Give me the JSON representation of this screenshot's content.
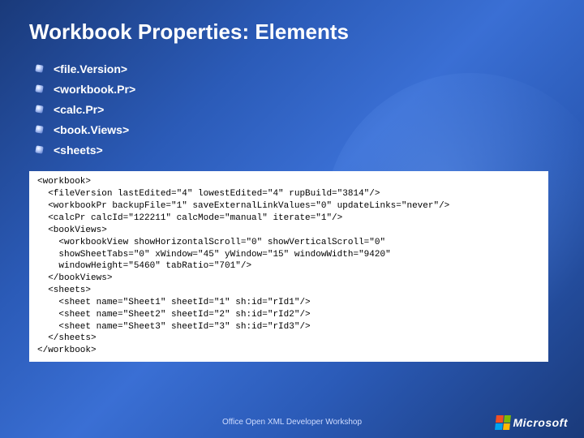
{
  "title": "Workbook Properties: Elements",
  "bullets": [
    "<file.Version>",
    "<workbook.Pr>",
    "<calc.Pr>",
    "<book.Views>",
    "<sheets>"
  ],
  "code": "<workbook>\n  <fileVersion lastEdited=\"4\" lowestEdited=\"4\" rupBuild=\"3814\"/>\n  <workbookPr backupFile=\"1\" saveExternalLinkValues=\"0\" updateLinks=\"never\"/>\n  <calcPr calcId=\"122211\" calcMode=\"manual\" iterate=\"1\"/>\n  <bookViews>\n    <workbookView showHorizontalScroll=\"0\" showVerticalScroll=\"0\"\n    showSheetTabs=\"0\" xWindow=\"45\" yWindow=\"15\" windowWidth=\"9420\"\n    windowHeight=\"5460\" tabRatio=\"701\"/>\n  </bookViews>\n  <sheets>\n    <sheet name=\"Sheet1\" sheetId=\"1\" sh:id=\"rId1\"/>\n    <sheet name=\"Sheet2\" sheetId=\"2\" sh:id=\"rId2\"/>\n    <sheet name=\"Sheet3\" sheetId=\"3\" sh:id=\"rId3\"/>\n  </sheets>\n</workbook>",
  "footer": "Office Open XML Developer Workshop",
  "logo_text": "Microsoft"
}
